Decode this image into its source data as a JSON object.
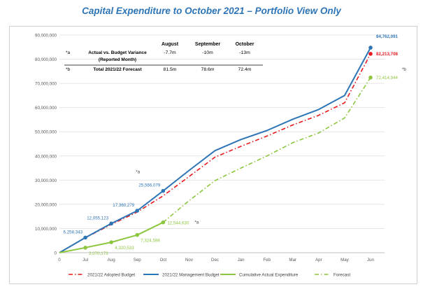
{
  "chart_data": {
    "type": "line",
    "title": "Capital Expenditure to October 2021 – Portfolio View Only",
    "categories": [
      "0",
      "Jul",
      "Aug",
      "Sep",
      "Oct",
      "Nov",
      "Dec",
      "Jan",
      "Feb",
      "Mar",
      "Apr",
      "May",
      "Jun"
    ],
    "ylim": [
      0,
      90000000
    ],
    "yticks": [
      "0",
      "10,000,000",
      "20,000,000",
      "30,000,000",
      "40,000,000",
      "50,000,000",
      "60,000,000",
      "70,000,000",
      "80,000,000",
      "90,000,000"
    ],
    "grid": "horizontal",
    "legend_position": "bottom",
    "series": [
      {
        "name": "2021/22 Adopted Budget",
        "color": "#e8191c",
        "style": "dash-dot",
        "values": [
          0,
          6200000,
          11700000,
          16800000,
          23500000,
          31500000,
          39500000,
          44000000,
          48200000,
          52800000,
          56800000,
          62000000,
          82213708
        ]
      },
      {
        "name": "2021/22 Management Budget",
        "color": "#2e75b6",
        "style": "solid",
        "values": [
          0,
          6258343,
          12055123,
          17360279,
          25566079,
          34000000,
          42200000,
          46800000,
          50500000,
          55200000,
          59200000,
          65000000,
          84762091
        ]
      },
      {
        "name": "Cumulative Actual Expenditure",
        "color": "#8dc63f",
        "style": "solid",
        "values": [
          0,
          2070173,
          4320533,
          7324598,
          12544630,
          null,
          null,
          null,
          null,
          null,
          null,
          null,
          null
        ]
      },
      {
        "name": "Forecast",
        "color": "#8dc63f",
        "style": "dash-dot",
        "values": [
          null,
          null,
          null,
          null,
          12544630,
          21500000,
          29800000,
          35000000,
          40000000,
          45500000,
          49500000,
          55700000,
          72414944
        ]
      }
    ],
    "data_labels": [
      {
        "series": 1,
        "index": 1,
        "text": "6,258,343"
      },
      {
        "series": 1,
        "index": 2,
        "text": "12,055,123"
      },
      {
        "series": 1,
        "index": 3,
        "text": "17,360,279"
      },
      {
        "series": 1,
        "index": 4,
        "text": "25,566,079"
      },
      {
        "series": 1,
        "index": 12,
        "text": "84,762,091"
      },
      {
        "series": 0,
        "index": 12,
        "text": "82,213,708"
      },
      {
        "series": 2,
        "index": 1,
        "text": "2,070,173"
      },
      {
        "series": 2,
        "index": 2,
        "text": "4,320,533"
      },
      {
        "series": 2,
        "index": 3,
        "text": "7,324,598"
      },
      {
        "series": 2,
        "index": 4,
        "text": "12,544,630"
      },
      {
        "series": 3,
        "index": 12,
        "text": "72,414,944"
      }
    ],
    "notes": [
      {
        "text": "*a",
        "near": "Oct management budget"
      },
      {
        "text": "*a",
        "near": "Oct actual expenditure"
      },
      {
        "text": "*b",
        "near": "Jun forecast"
      }
    ],
    "variance_table": {
      "columns": [
        "August",
        "September",
        "October"
      ],
      "rows": [
        {
          "marker": "*a",
          "label_line1": "Actual vs. Budget Variance",
          "label_line2": "(Reported Month)",
          "values": [
            "-7.7m",
            "-10m",
            "-13m"
          ]
        },
        {
          "marker": "*b",
          "label_line1": "Total 2021/22 Forecast",
          "label_line2": "",
          "values": [
            "81.5m",
            "78.6m",
            "72.4m"
          ]
        }
      ]
    }
  }
}
